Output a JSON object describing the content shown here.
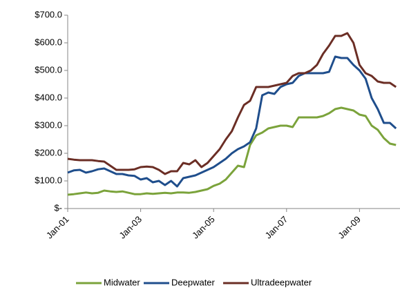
{
  "chart_data": {
    "type": "line",
    "categories": [
      "Jan-01",
      null,
      null,
      null,
      null,
      null,
      null,
      null,
      null,
      null,
      null,
      null,
      "Jan-03",
      null,
      null,
      null,
      null,
      null,
      null,
      null,
      null,
      null,
      null,
      null,
      "Jan-05",
      null,
      null,
      null,
      null,
      null,
      null,
      null,
      null,
      null,
      null,
      null,
      "Jan-07",
      null,
      null,
      null,
      null,
      null,
      null,
      null,
      null,
      null,
      null,
      null,
      "Jan-09",
      null,
      null,
      null,
      null,
      null,
      null
    ],
    "series": [
      {
        "name": "Midwater",
        "color": "#7ba33b",
        "values": [
          50,
          52,
          55,
          58,
          55,
          57,
          65,
          62,
          60,
          62,
          57,
          52,
          52,
          55,
          53,
          55,
          57,
          55,
          58,
          58,
          57,
          60,
          65,
          70,
          82,
          90,
          105,
          130,
          155,
          150,
          230,
          265,
          275,
          290,
          295,
          300,
          300,
          295,
          330,
          330,
          330,
          330,
          335,
          345,
          360,
          365,
          360,
          355,
          340,
          335,
          300,
          285,
          255,
          235,
          230
        ]
      },
      {
        "name": "Deepwater",
        "color": "#1f4e8c",
        "values": [
          130,
          138,
          140,
          130,
          135,
          142,
          145,
          135,
          125,
          125,
          120,
          118,
          105,
          110,
          95,
          100,
          85,
          100,
          80,
          110,
          115,
          120,
          130,
          140,
          150,
          165,
          180,
          200,
          215,
          225,
          240,
          290,
          410,
          420,
          415,
          440,
          450,
          455,
          480,
          490,
          490,
          490,
          490,
          495,
          550,
          545,
          545,
          520,
          500,
          470,
          400,
          360,
          310,
          310,
          290
        ]
      },
      {
        "name": "Ultradeepwater",
        "color": "#6b2e25",
        "values": [
          180,
          177,
          175,
          175,
          175,
          172,
          170,
          155,
          140,
          140,
          140,
          142,
          150,
          152,
          150,
          140,
          125,
          135,
          135,
          165,
          160,
          175,
          150,
          165,
          190,
          215,
          250,
          280,
          330,
          375,
          390,
          440,
          440,
          440,
          445,
          450,
          455,
          480,
          490,
          490,
          500,
          520,
          560,
          590,
          625,
          625,
          635,
          600,
          520,
          490,
          480,
          460,
          455,
          455,
          440
        ]
      }
    ],
    "ylim": [
      0,
      700
    ],
    "yticks": [
      {
        "value": 0,
        "label": "$-"
      },
      {
        "value": 100,
        "label": "$100.0"
      },
      {
        "value": 200,
        "label": "$200.0"
      },
      {
        "value": 300,
        "label": "$300.0"
      },
      {
        "value": 400,
        "label": "$400.0"
      },
      {
        "value": 500,
        "label": "$500.0"
      },
      {
        "value": 600,
        "label": "$600.0"
      },
      {
        "value": 700,
        "label": "$700.0"
      }
    ],
    "legend": "bottom"
  }
}
